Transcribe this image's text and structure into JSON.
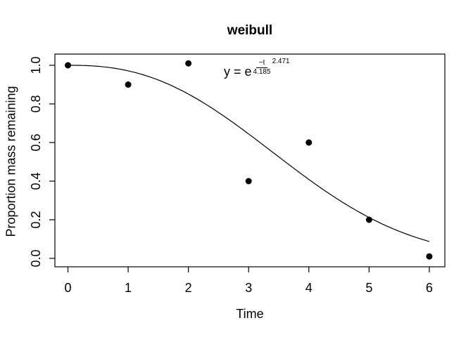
{
  "figure": {
    "background": "#ffffff",
    "foreground": "#000000"
  },
  "chart_data": {
    "type": "scatter",
    "title": "weibull",
    "xlabel": "Time",
    "ylabel": "Proportion mass remaining",
    "xlim": [
      0,
      6
    ],
    "ylim": [
      0,
      1.05
    ],
    "grid": false,
    "legend": null,
    "x_ticks": [
      "0",
      "1",
      "2",
      "3",
      "4",
      "5",
      "6"
    ],
    "y_ticks": [
      "0.0",
      "0.2",
      "0.4",
      "0.6",
      "0.8",
      "1.0"
    ],
    "points": {
      "x": [
        0,
        1,
        2,
        3,
        4,
        5,
        6
      ],
      "y": [
        1.0,
        0.9,
        1.01,
        0.4,
        0.6,
        0.2,
        0.01
      ]
    },
    "fit_curve": {
      "type": "weibull-decay",
      "formula": "y = exp(-(t/4.185)^2.471)",
      "scale": 4.185,
      "shape": 2.471,
      "x_range": [
        0,
        6
      ]
    },
    "annotation": {
      "prefix": "y = e",
      "numerator": "−t",
      "denominator": "4.185",
      "power": "2.471"
    }
  }
}
